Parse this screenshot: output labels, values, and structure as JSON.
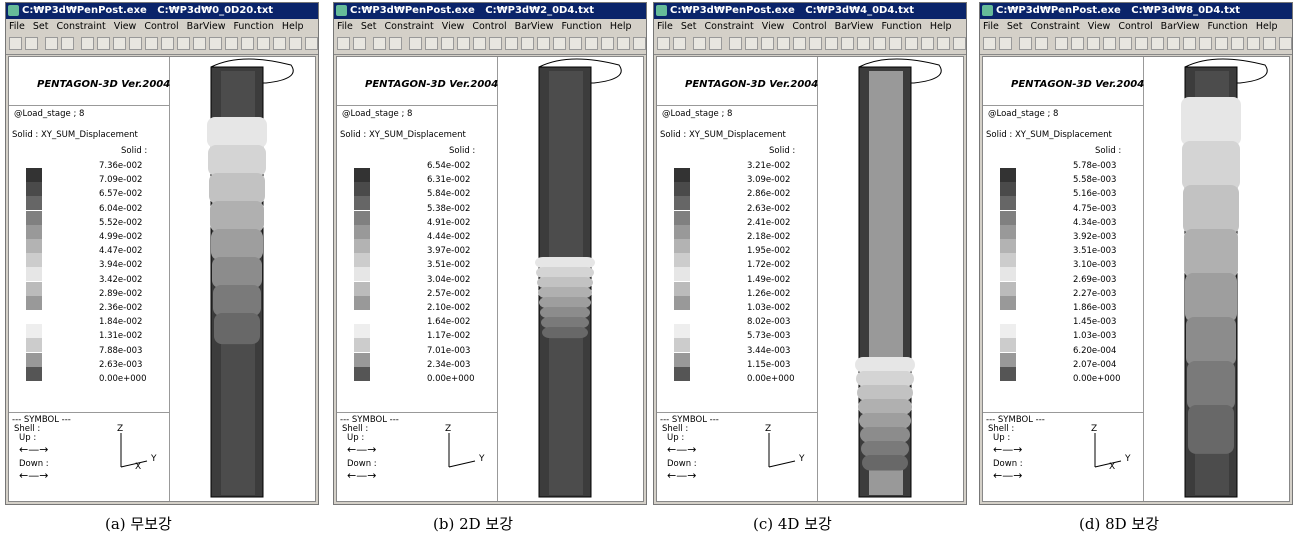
{
  "menu": [
    "File",
    "Set",
    "Constraint",
    "View",
    "Control",
    "BarView",
    "Function",
    "Help"
  ],
  "header": "PENTAGON-3D Ver.2004",
  "load_stage": "@Load_stage ; 8",
  "solid_label": "Solid : XY_SUM_Displacement",
  "solid_short": "Solid :",
  "symbol": {
    "title": "--- SYMBOL ---",
    "shell": "Shell :",
    "up": "Up :",
    "down": "Down :"
  },
  "panels": [
    {
      "title": "C:₩P3d₩PenPost.exe   C:₩P3d₩0_0D20.txt",
      "caption": "(a) 무보강",
      "axes": [
        "Z",
        "Y",
        "X"
      ],
      "legend": [
        "7.36e-002",
        "7.09e-002",
        "6.57e-002",
        "6.04e-002",
        "5.52e-002",
        "4.99e-002",
        "4.47e-002",
        "3.94e-002",
        "3.42e-002",
        "2.89e-002",
        "2.36e-002",
        "1.84e-002",
        "1.31e-002",
        "7.88e-003",
        "2.63e-003",
        "0.00e+000"
      ]
    },
    {
      "title": "C:₩P3d₩PenPost.exe   C:₩P3d₩2_0D4.txt",
      "caption": "(b) 2D 보강",
      "axes": [
        "Z",
        "Y"
      ],
      "legend": [
        "6.54e-002",
        "6.31e-002",
        "5.84e-002",
        "5.38e-002",
        "4.91e-002",
        "4.44e-002",
        "3.97e-002",
        "3.51e-002",
        "3.04e-002",
        "2.57e-002",
        "2.10e-002",
        "1.64e-002",
        "1.17e-002",
        "7.01e-003",
        "2.34e-003",
        "0.00e+000"
      ]
    },
    {
      "title": "C:₩P3d₩PenPost.exe   C:₩P3d₩4_0D4.txt",
      "caption": "(c) 4D 보강",
      "axes": [
        "Z",
        "Y"
      ],
      "legend": [
        "3.21e-002",
        "3.09e-002",
        "2.86e-002",
        "2.63e-002",
        "2.41e-002",
        "2.18e-002",
        "1.95e-002",
        "1.72e-002",
        "1.49e-002",
        "1.26e-002",
        "1.03e-002",
        "8.02e-003",
        "5.73e-003",
        "3.44e-003",
        "1.15e-003",
        "0.00e+000"
      ]
    },
    {
      "title": "C:₩P3d₩PenPost.exe   C:₩P3d₩8_0D4.txt",
      "caption": "(d) 8D 보강",
      "axes": [
        "Z",
        "Y",
        "X"
      ],
      "legend": [
        "5.78e-003",
        "5.58e-003",
        "5.16e-003",
        "4.75e-003",
        "4.34e-003",
        "3.92e-003",
        "3.51e-003",
        "3.10e-003",
        "2.69e-003",
        "2.27e-003",
        "1.86e-003",
        "1.45e-003",
        "1.03e-003",
        "6.20e-004",
        "2.07e-004",
        "0.00e+000"
      ]
    }
  ]
}
